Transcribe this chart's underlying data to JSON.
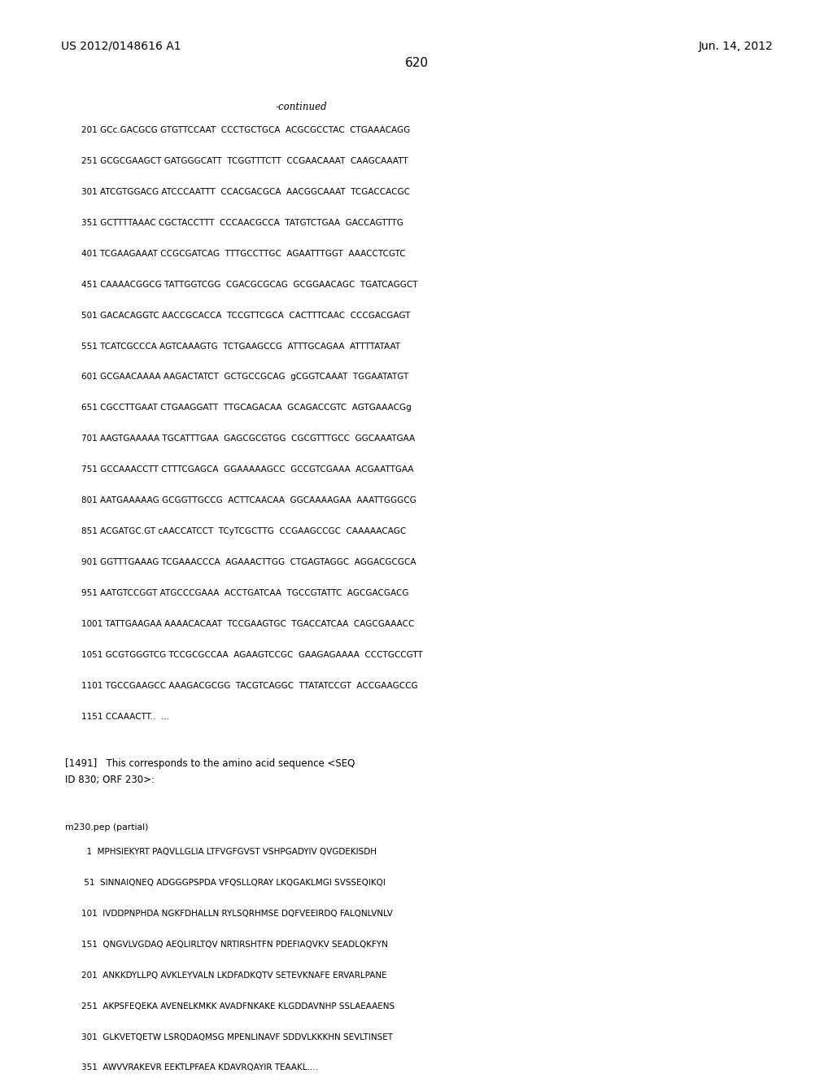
{
  "header_left": "US 2012/0148616 A1",
  "header_right": "Jun. 14, 2012",
  "page_number": "620",
  "continued_label": "-continued",
  "dna_lines": [
    "201 GCc.GACGCG GTGTTCCAAT  CCCTGCTGCA  ACGCGCCTAC  CTGAAACAGG",
    "251 GCGCGAAGCT GATGGGCATT  TCGGTTTCTT  CCGAACAAAT  CAAGCAAATT",
    "301 ATCGTGGACG ATCCCAATTT  CCACGACGCA  AACGGCAAAT  TCGACCACGC",
    "351 GCTTTTAAAC CGCTACCTTT  CCCAACGCCA  TATGTCTGAA  GACCAGTTTG",
    "401 TCGAAGAAAT CCGCGATCAG  TTTGCCTTGC  AGAATTTGGT  AAACCTCGTC",
    "451 CAAAACGGCG TATTGGTCGG  CGACGCGCAG  GCGGAACAGC  TGATCAGGCT",
    "501 GACACAGGTC AACCGCACCA  TCCGTTCGCA  CACTTTCAAC  CCCGACGAGT",
    "551 TCATCGCCCA AGTCAAAGTG  TCTGAAGCCG  ATTTGCAGAA  ATTTTATAAT",
    "601 GCGAACAAAA AAGACTATCT  GCTGCCGCAG  gCGGTCAAAT  TGGAATATGT",
    "651 CGCCTTGAAT CTGAAGGATT  TTGCAGACAA  GCAGACCGTC  AGTGAAACGg",
    "701 AAGTGAAAAA TGCATTTGAA  GAGCGCGTGG  CGCGTTTGCC  GGCAAATGAA",
    "751 GCCAAACCTT CTTTCGAGCA  GGAAAAAGCC  GCCGTCGAAA  ACGAATTGAA",
    "801 AATGAAAAAG GCGGTTGCCG  ACTTCAACAA  GGCAAAAGAA  AAATTGGGCG",
    "851 ACGATGC.GT cAACCATCCT  TCyTCGCTTG  CCGAAGCCGC  CAAAAACAGC",
    "901 GGTTTGAAAG TCGAAACCCA  AGAAACTTGG  CTGAGTAGGC  AGGACGCGCA",
    "951 AATGTCCGGT ATGCCCGAAA  ACCTGATCAA  TGCCGTATTC  AGCGACGACG",
    "1001 TATTGAAGAA AAAACACAAT  TCCGAAGTGC  TGACCATCAA  CAGCGAAACC",
    "1051 GCGTGGGTCG TCCGCGCCAA  AGAAGTCCGC  GAAGAGAAAA  CCCTGCCGTT",
    "1101 TGCCGAAGCC AAAGACGCGG  TACGTCAGGC  TTATATCCGT  ACCGAAGCCG",
    "1151 CCAAACTT..  ..."
  ],
  "paragraph_1491": "[1491]   This corresponds to the amino acid sequence <SEQ\nID 830; ORF 230>:",
  "pep_label": "m230.pep (partial)",
  "pep_lines": [
    "  1  MPHSIEKYRT PAQVLLGLIA LTFVGFGVST VSHPGADYIV QVGDEKISDH",
    " 51  SINNAIQNEQ ADGGGPSPDA VFQSLLQRAY LKQGAKLMGI SVSSEQIKQI",
    "101  IVDDPNPHDA NGKFDHALLN RYLSQRHMSE DQFVEEIRDQ FALQNLVNLV",
    "151  QNGVLVGDAQ AEQLIRLTQV NRTIRSHTFN PDEFIAQVKV SEADLQKFYN",
    "201  ANKKDYLLPQ AVKLEYVALN LKDFADKQTV SETEVKNAFE ERVARLPANE",
    "251  AKPSFEQEKA AVENELKMKK AVADFNKAKE KLGDDAVNHP SSLAEAAENS",
    "301  GLKVETQETW LSRQDAQMSG MPENLINAVF SDDVLKKKHN SEVLTINSET",
    "351  AWVVRAKEVR EEKTLPFAEA KDAVRQAYIR TEAAKL...."
  ],
  "bg_color": "#ffffff",
  "text_color": "#000000",
  "font_size_header": 10,
  "font_size_body": 8.5,
  "font_size_page": 11
}
